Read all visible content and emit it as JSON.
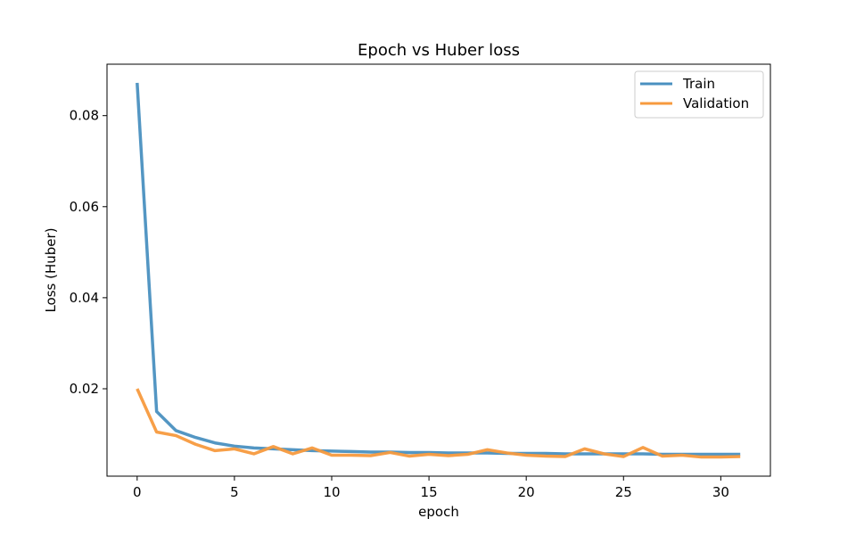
{
  "chart_data": {
    "type": "line",
    "title": "Epoch vs Huber loss",
    "xlabel": "epoch",
    "ylabel": "Loss (Huber)",
    "xlim": [
      -1.55,
      32.55
    ],
    "ylim": [
      0.0008,
      0.0913
    ],
    "xticks": [
      0,
      5,
      10,
      15,
      20,
      25,
      30
    ],
    "xtick_labels": [
      "0",
      "5",
      "10",
      "15",
      "20",
      "25",
      "30"
    ],
    "yticks": [
      0.02,
      0.04,
      0.06,
      0.08
    ],
    "ytick_labels": [
      "0.02",
      "0.04",
      "0.06",
      "0.08"
    ],
    "grid": false,
    "legend_position": "top-right",
    "x": [
      0,
      1,
      2,
      3,
      4,
      5,
      6,
      7,
      8,
      9,
      10,
      11,
      12,
      13,
      14,
      15,
      16,
      17,
      18,
      19,
      20,
      21,
      22,
      23,
      24,
      25,
      26,
      27,
      28,
      29,
      30,
      31
    ],
    "series": [
      {
        "name": "Train",
        "color": "#4a90c0",
        "values": [
          0.0872,
          0.015,
          0.0108,
          0.0093,
          0.0081,
          0.0074,
          0.007,
          0.0068,
          0.0066,
          0.0064,
          0.0063,
          0.0062,
          0.0061,
          0.0061,
          0.006,
          0.006,
          0.0059,
          0.0059,
          0.0059,
          0.0058,
          0.0058,
          0.0058,
          0.0057,
          0.0057,
          0.0057,
          0.0057,
          0.0057,
          0.0056,
          0.0056,
          0.0056,
          0.0056,
          0.0056
        ]
      },
      {
        "name": "Validation",
        "color": "#f79a3e",
        "values": [
          0.02,
          0.0105,
          0.0097,
          0.0078,
          0.0064,
          0.0068,
          0.0057,
          0.0073,
          0.0057,
          0.007,
          0.0054,
          0.0054,
          0.0053,
          0.006,
          0.0052,
          0.0056,
          0.0053,
          0.0056,
          0.0066,
          0.0059,
          0.0054,
          0.0052,
          0.0051,
          0.0068,
          0.0057,
          0.0051,
          0.0071,
          0.0052,
          0.0054,
          0.005,
          0.005,
          0.0051
        ]
      }
    ]
  }
}
